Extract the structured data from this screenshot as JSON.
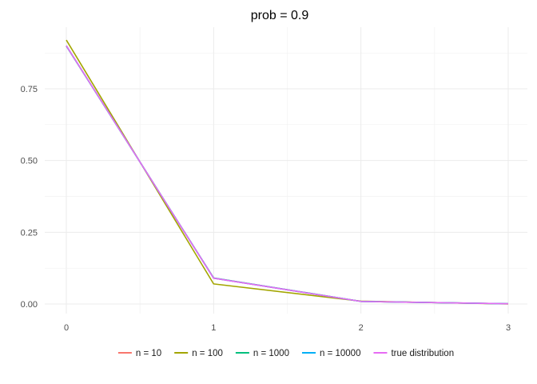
{
  "chart_data": {
    "type": "line",
    "title": "prob = 0.9",
    "xlabel": "",
    "ylabel": "",
    "xlim": [
      0,
      3
    ],
    "ylim": [
      -0.01,
      0.94
    ],
    "x_ticks": [
      0,
      1,
      2,
      3
    ],
    "x_tick_labels": [
      "0",
      "1",
      "2",
      "3"
    ],
    "y_ticks": [
      0,
      0.25,
      0.5,
      0.75
    ],
    "y_tick_labels": [
      "0.00",
      "0.25",
      "0.50",
      "0.75"
    ],
    "grid": true,
    "legend_position": "bottom",
    "x": [
      0,
      1,
      2,
      3
    ],
    "series": [
      {
        "name": "n =  10",
        "color": "#F8766D",
        "values": [
          0.9,
          0.09,
          0.009,
          0.001
        ]
      },
      {
        "name": "n =  100",
        "color": "#A3A500",
        "values": [
          0.92,
          0.07,
          0.01,
          0.0
        ]
      },
      {
        "name": "n =  1000",
        "color": "#00BF7D",
        "values": [
          0.899,
          0.091,
          0.009,
          0.001
        ]
      },
      {
        "name": "n =  10000",
        "color": "#00B0F6",
        "values": [
          0.9,
          0.09,
          0.009,
          0.001
        ]
      },
      {
        "name": "true distribution",
        "color": "#E76BF3",
        "values": [
          0.9,
          0.09,
          0.009,
          0.001
        ]
      }
    ]
  }
}
